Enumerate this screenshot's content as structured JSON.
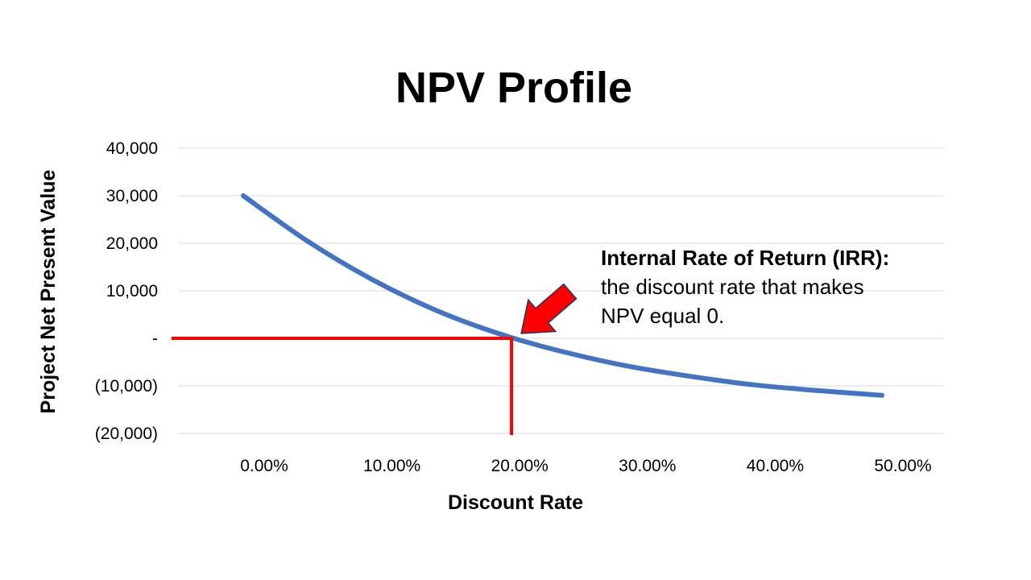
{
  "colors": {
    "series": "#4472C4",
    "irr_marker": "#FF0000",
    "arrow_outline": "#1F3864",
    "gridline": "#D9D9D9"
  },
  "callout": {
    "heading": "Internal Rate of Return (IRR):",
    "line1": "the discount rate that makes",
    "line2": "NPV equal 0."
  },
  "chart_data": {
    "type": "line",
    "title": "NPV Profile",
    "xlabel": "Discount Rate",
    "ylabel": "Project Net Present Value",
    "x": [
      0,
      0.05,
      0.1,
      0.15,
      0.2,
      0.25,
      0.3,
      0.35,
      0.4,
      0.45,
      0.5
    ],
    "categories": [
      "0.00%",
      "10.00%",
      "20.00%",
      "30.00%",
      "40.00%",
      "50.00%"
    ],
    "series": [
      {
        "values": [
          30000,
          20500,
          12500,
          6000,
          1000,
          -2800,
          -5800,
          -8000,
          -9800,
          -11000,
          -12000
        ]
      }
    ],
    "ylim": [
      -20000,
      40000
    ],
    "y_ticks": [
      40000,
      30000,
      20000,
      10000,
      0,
      -10000,
      -20000
    ],
    "y_tick_labels": [
      "40,000",
      "30,000",
      "20,000",
      "10,000",
      "-",
      "(10,000)",
      "(20,000)"
    ],
    "grid": true,
    "legend": "none",
    "irr": 0.21,
    "annotation": "Internal Rate of Return (IRR): the discount rate that makes NPV equal 0."
  }
}
